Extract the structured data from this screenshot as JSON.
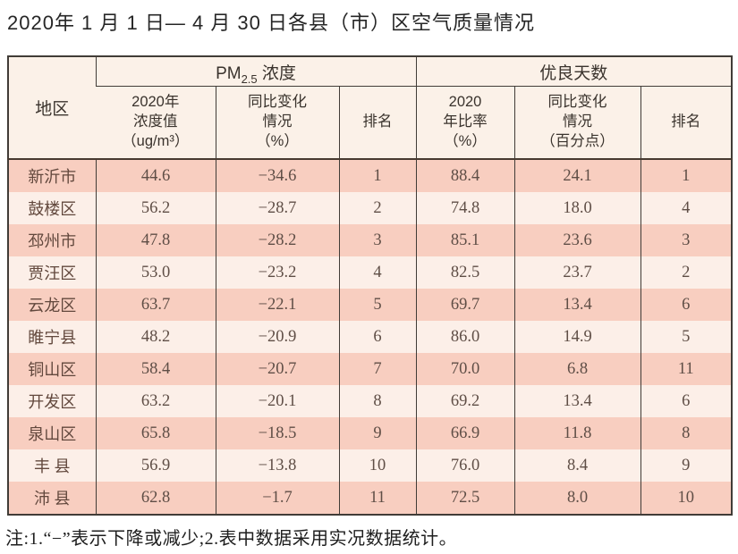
{
  "title": "2020年 1 月 1 日— 4 月 30 日各县（市）区空气质量情况",
  "table": {
    "region_header": "地区",
    "pm_group": {
      "prefix": "PM",
      "sub": "2.5",
      "suffix": " 浓度"
    },
    "good_group": "优良天数",
    "sub_headers": {
      "pm_value": "2020年\n浓度值\n（ug/m³）",
      "pm_change": "同比变化\n情况\n（%）",
      "pm_rank": "排名",
      "good_rate": "2020\n年比率\n（%）",
      "good_change": "同比变化\n情况\n（百分点）",
      "good_rank": "排名"
    },
    "rows": [
      {
        "region": "新沂市",
        "pm_value": "44.6",
        "pm_change": "−34.6",
        "pm_rank": "1",
        "good_rate": "88.4",
        "good_change": "24.1",
        "good_rank": "1"
      },
      {
        "region": "鼓楼区",
        "pm_value": "56.2",
        "pm_change": "−28.7",
        "pm_rank": "2",
        "good_rate": "74.8",
        "good_change": "18.0",
        "good_rank": "4"
      },
      {
        "region": "邳州市",
        "pm_value": "47.8",
        "pm_change": "−28.2",
        "pm_rank": "3",
        "good_rate": "85.1",
        "good_change": "23.6",
        "good_rank": "3"
      },
      {
        "region": "贾汪区",
        "pm_value": "53.0",
        "pm_change": "−23.2",
        "pm_rank": "4",
        "good_rate": "82.5",
        "good_change": "23.7",
        "good_rank": "2"
      },
      {
        "region": "云龙区",
        "pm_value": "63.7",
        "pm_change": "−22.1",
        "pm_rank": "5",
        "good_rate": "69.7",
        "good_change": "13.4",
        "good_rank": "6"
      },
      {
        "region": "睢宁县",
        "pm_value": "48.2",
        "pm_change": "−20.9",
        "pm_rank": "6",
        "good_rate": "86.0",
        "good_change": "14.9",
        "good_rank": "5"
      },
      {
        "region": "铜山区",
        "pm_value": "58.4",
        "pm_change": "−20.7",
        "pm_rank": "7",
        "good_rate": "70.0",
        "good_change": "6.8",
        "good_rank": "11"
      },
      {
        "region": "开发区",
        "pm_value": "63.2",
        "pm_change": "−20.1",
        "pm_rank": "8",
        "good_rate": "69.2",
        "good_change": "13.4",
        "good_rank": "6"
      },
      {
        "region": "泉山区",
        "pm_value": "65.8",
        "pm_change": "−18.5",
        "pm_rank": "9",
        "good_rate": "66.9",
        "good_change": "11.8",
        "good_rank": "8"
      },
      {
        "region": "丰 县",
        "pm_value": "56.9",
        "pm_change": "−13.8",
        "pm_rank": "10",
        "good_rate": "76.0",
        "good_change": "8.4",
        "good_rank": "9"
      },
      {
        "region": "沛 县",
        "pm_value": "62.8",
        "pm_change": "−1.7",
        "pm_rank": "11",
        "good_rate": "72.5",
        "good_change": "8.0",
        "good_rank": "10"
      }
    ]
  },
  "note": "注:1.“−”表示下降或减少;2.表中数据采用实况数据统计。"
}
